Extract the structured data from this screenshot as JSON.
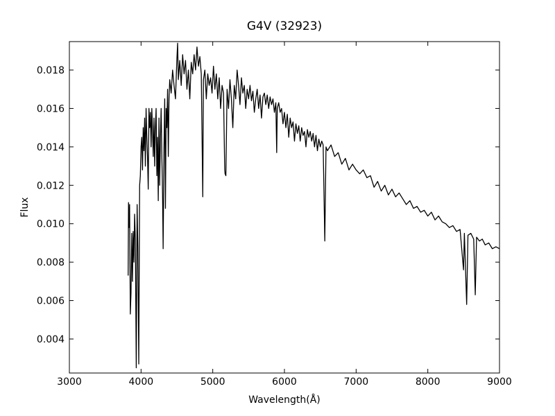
{
  "chart_data": {
    "type": "line",
    "title": "G4V (32923)",
    "xlabel": "Wavelength(Å)",
    "ylabel": "Flux",
    "color": "#000000",
    "xlim": [
      3000,
      9000
    ],
    "xticks": [
      3000,
      4000,
      5000,
      6000,
      7000,
      8000,
      9000
    ],
    "ylim": [
      0.00223,
      0.01948
    ],
    "yticks": [
      0.004,
      0.006,
      0.008,
      {
        "value": 0.01,
        "label": "0.010"
      },
      0.012,
      0.014,
      0.016,
      0.018
    ],
    "x": [
      3820,
      3825,
      3830,
      3840,
      3850,
      3860,
      3870,
      3880,
      3890,
      3900,
      3910,
      3920,
      3933,
      3945,
      3955,
      3968,
      3980,
      3990,
      4000,
      4010,
      4020,
      4030,
      4040,
      4050,
      4060,
      4070,
      4080,
      4090,
      4100,
      4110,
      4120,
      4130,
      4140,
      4150,
      4160,
      4170,
      4180,
      4190,
      4200,
      4210,
      4220,
      4230,
      4240,
      4250,
      4260,
      4270,
      4280,
      4290,
      4300,
      4308,
      4320,
      4330,
      4340,
      4350,
      4360,
      4370,
      4380,
      4390,
      4400,
      4420,
      4440,
      4460,
      4480,
      4500,
      4510,
      4520,
      4540,
      4560,
      4580,
      4600,
      4620,
      4640,
      4660,
      4680,
      4700,
      4720,
      4740,
      4760,
      4780,
      4800,
      4820,
      4840,
      4861,
      4870,
      4890,
      4910,
      4930,
      4950,
      4970,
      4990,
      5010,
      5030,
      5050,
      5070,
      5090,
      5110,
      5130,
      5150,
      5167,
      5172,
      5183,
      5200,
      5220,
      5240,
      5260,
      5280,
      5300,
      5320,
      5340,
      5360,
      5380,
      5400,
      5420,
      5440,
      5460,
      5480,
      5500,
      5520,
      5540,
      5560,
      5580,
      5600,
      5620,
      5640,
      5660,
      5680,
      5700,
      5720,
      5740,
      5760,
      5780,
      5800,
      5820,
      5840,
      5860,
      5880,
      5892,
      5900,
      5920,
      5940,
      5960,
      5980,
      6000,
      6020,
      6040,
      6060,
      6080,
      6100,
      6120,
      6140,
      6160,
      6180,
      6200,
      6220,
      6240,
      6260,
      6280,
      6300,
      6320,
      6340,
      6360,
      6380,
      6400,
      6420,
      6440,
      6460,
      6480,
      6500,
      6520,
      6540,
      6563,
      6580,
      6600,
      6650,
      6700,
      6750,
      6800,
      6850,
      6900,
      6950,
      7000,
      7050,
      7100,
      7150,
      7200,
      7250,
      7300,
      7350,
      7400,
      7450,
      7500,
      7550,
      7600,
      7650,
      7700,
      7750,
      7800,
      7850,
      7900,
      7950,
      8000,
      8050,
      8100,
      8150,
      8200,
      8250,
      8300,
      8350,
      8400,
      8450,
      8498,
      8510,
      8542,
      8560,
      8600,
      8640,
      8662,
      8680,
      8720,
      8760,
      8800,
      8850,
      8900,
      8950,
      9000
    ],
    "values": [
      0.0073,
      0.0111,
      0.0098,
      0.011,
      0.0053,
      0.0064,
      0.0095,
      0.007,
      0.0096,
      0.008,
      0.0105,
      0.0092,
      0.0025,
      0.011,
      0.0088,
      0.0027,
      0.012,
      0.0125,
      0.014,
      0.0145,
      0.0128,
      0.015,
      0.0138,
      0.0155,
      0.013,
      0.016,
      0.0145,
      0.0135,
      0.0118,
      0.016,
      0.015,
      0.0158,
      0.014,
      0.016,
      0.0148,
      0.0135,
      0.0155,
      0.013,
      0.015,
      0.016,
      0.0125,
      0.0145,
      0.0112,
      0.0155,
      0.012,
      0.0145,
      0.016,
      0.0135,
      0.0115,
      0.0087,
      0.014,
      0.0165,
      0.0108,
      0.016,
      0.015,
      0.017,
      0.0135,
      0.0165,
      0.0175,
      0.0168,
      0.018,
      0.0172,
      0.0165,
      0.0186,
      0.0194,
      0.0175,
      0.0185,
      0.0172,
      0.0188,
      0.0178,
      0.0185,
      0.017,
      0.018,
      0.0165,
      0.0184,
      0.0178,
      0.0188,
      0.018,
      0.0192,
      0.0182,
      0.0187,
      0.0178,
      0.0114,
      0.0175,
      0.018,
      0.0165,
      0.0178,
      0.0172,
      0.0176,
      0.0168,
      0.0182,
      0.017,
      0.0178,
      0.0165,
      0.0176,
      0.016,
      0.0172,
      0.0168,
      0.0128,
      0.0126,
      0.0125,
      0.017,
      0.016,
      0.0175,
      0.0165,
      0.015,
      0.0172,
      0.0165,
      0.018,
      0.0172,
      0.0162,
      0.0176,
      0.0168,
      0.0172,
      0.016,
      0.017,
      0.0165,
      0.0172,
      0.0164,
      0.0169,
      0.0158,
      0.0165,
      0.017,
      0.016,
      0.0167,
      0.0155,
      0.0166,
      0.0168,
      0.0162,
      0.0167,
      0.016,
      0.0166,
      0.0162,
      0.0165,
      0.0158,
      0.0163,
      0.0137,
      0.016,
      0.0163,
      0.0158,
      0.016,
      0.0152,
      0.0158,
      0.015,
      0.0157,
      0.0145,
      0.0155,
      0.015,
      0.0153,
      0.0143,
      0.0152,
      0.0147,
      0.0151,
      0.0143,
      0.015,
      0.0146,
      0.0148,
      0.014,
      0.0149,
      0.0145,
      0.0148,
      0.0143,
      0.0147,
      0.014,
      0.0146,
      0.0138,
      0.0144,
      0.014,
      0.0143,
      0.0141,
      0.0091,
      0.014,
      0.0138,
      0.0141,
      0.0135,
      0.0137,
      0.0131,
      0.0134,
      0.0128,
      0.0131,
      0.0128,
      0.0126,
      0.0128,
      0.0124,
      0.0125,
      0.0119,
      0.0122,
      0.0117,
      0.012,
      0.0115,
      0.0118,
      0.0114,
      0.0116,
      0.0113,
      0.011,
      0.0112,
      0.0108,
      0.0109,
      0.0106,
      0.0107,
      0.0104,
      0.0106,
      0.0102,
      0.0104,
      0.0101,
      0.01,
      0.0098,
      0.0099,
      0.0096,
      0.0097,
      0.0076,
      0.0095,
      0.0058,
      0.0094,
      0.0095,
      0.0092,
      0.0063,
      0.0093,
      0.0091,
      0.0092,
      0.0089,
      0.009,
      0.0087,
      0.0088,
      0.0087
    ]
  }
}
